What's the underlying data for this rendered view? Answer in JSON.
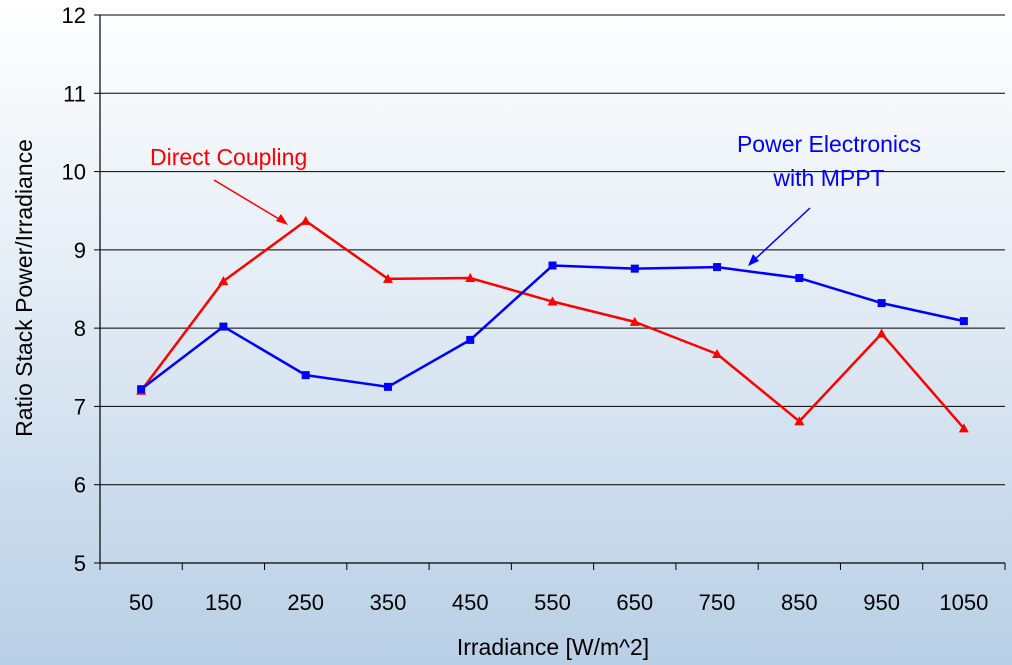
{
  "chart_data": {
    "type": "line",
    "categories": [
      "50",
      "150",
      "250",
      "350",
      "450",
      "550",
      "650",
      "750",
      "850",
      "950",
      "1050"
    ],
    "xlabel": "Irradiance [W/m^2]",
    "ylabel": "Ratio Stack Power/Irradiance",
    "ylim": [
      5,
      12
    ],
    "yticks": [
      5,
      6,
      7,
      8,
      9,
      10,
      11,
      12
    ],
    "grid": true,
    "series": [
      {
        "name": "Direct Coupling",
        "color": "#ff0000",
        "marker": "triangle",
        "values": [
          7.2,
          8.6,
          9.37,
          8.63,
          8.64,
          8.34,
          8.08,
          7.67,
          6.81,
          7.93,
          6.72
        ]
      },
      {
        "name": "Power Electronics with MPPT",
        "color": "#0000ff",
        "marker": "square",
        "values": [
          7.22,
          8.02,
          7.4,
          7.25,
          7.85,
          8.8,
          8.76,
          8.78,
          8.64,
          8.32,
          8.09
        ]
      }
    ],
    "annotations": [
      {
        "text": "Direct Coupling",
        "color": "#ff0000"
      },
      {
        "text_lines": [
          "Power Electronics",
          "with MPPT"
        ],
        "color": "#0000ff"
      }
    ]
  }
}
